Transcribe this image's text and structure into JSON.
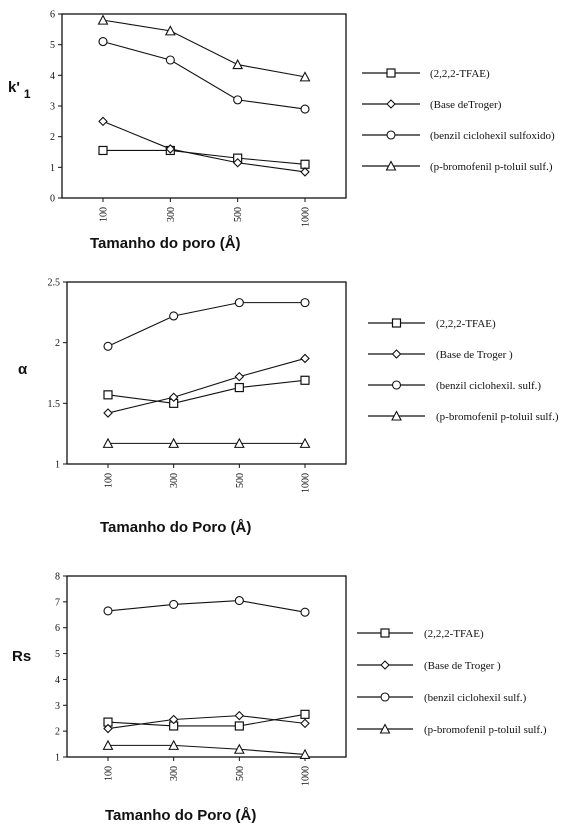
{
  "chart_data": [
    {
      "type": "line",
      "ylabel": "k'",
      "ylabel_sub": "1",
      "xlabel": "Tamanho do poro (Å)",
      "categories": [
        "100",
        "300",
        "500",
        "1000"
      ],
      "ylim": [
        0,
        6
      ],
      "yticks": [
        "0",
        "1",
        "2",
        "3",
        "4",
        "5",
        "6"
      ],
      "grid": false,
      "legend_position": "right",
      "series": [
        {
          "name": "(2,2,2-TFAE)",
          "marker": "square",
          "values": [
            1.55,
            1.55,
            1.3,
            1.1
          ]
        },
        {
          "name": "(Base deTroger)",
          "marker": "diamond",
          "values": [
            2.5,
            1.6,
            1.15,
            0.85
          ]
        },
        {
          "name": "(benzil ciclohexil sulfoxido)",
          "marker": "circle",
          "values": [
            5.1,
            4.5,
            3.2,
            2.9
          ]
        },
        {
          "name": "(p-bromofenil p-toluil sulf.)",
          "marker": "triangle",
          "values": [
            5.8,
            5.45,
            4.35,
            3.95
          ]
        }
      ]
    },
    {
      "type": "line",
      "ylabel": "α",
      "ylabel_sub": "",
      "xlabel": "Tamanho do Poro (Å)",
      "categories": [
        "100",
        "300",
        "500",
        "1000"
      ],
      "ylim": [
        1,
        2.5
      ],
      "yticks": [
        "1",
        "1.5",
        "2",
        "2.5"
      ],
      "grid": false,
      "legend_position": "right",
      "series": [
        {
          "name": "(2,2,2-TFAE)",
          "marker": "square",
          "values": [
            1.57,
            1.5,
            1.63,
            1.69
          ]
        },
        {
          "name": "(Base de Troger )",
          "marker": "diamond",
          "values": [
            1.42,
            1.55,
            1.72,
            1.87
          ]
        },
        {
          "name": "(benzil ciclohexil. sulf.)",
          "marker": "circle",
          "values": [
            1.97,
            2.22,
            2.33,
            2.33
          ]
        },
        {
          "name": "(p-bromofenil p-toluil sulf.)",
          "marker": "triangle",
          "values": [
            1.17,
            1.17,
            1.17,
            1.17
          ]
        }
      ]
    },
    {
      "type": "line",
      "ylabel": "Rs",
      "ylabel_sub": "",
      "xlabel": "Tamanho do Poro (Å)",
      "categories": [
        "100",
        "300",
        "500",
        "1000"
      ],
      "ylim": [
        1,
        8
      ],
      "yticks": [
        "1",
        "2",
        "3",
        "4",
        "5",
        "6",
        "7",
        "8"
      ],
      "grid": false,
      "legend_position": "right",
      "series": [
        {
          "name": "(2,2,2-TFAE)",
          "marker": "square",
          "values": [
            2.35,
            2.2,
            2.2,
            2.65
          ]
        },
        {
          "name": "(Base de Troger )",
          "marker": "diamond",
          "values": [
            2.1,
            2.45,
            2.6,
            2.3
          ]
        },
        {
          "name": "(benzil ciclohexil  sulf.)",
          "marker": "circle",
          "values": [
            6.65,
            6.9,
            7.05,
            6.6
          ]
        },
        {
          "name": "(p-bromofenil p-toluil sulf.)",
          "marker": "triangle",
          "values": [
            1.45,
            1.45,
            1.3,
            1.1
          ]
        }
      ]
    }
  ]
}
